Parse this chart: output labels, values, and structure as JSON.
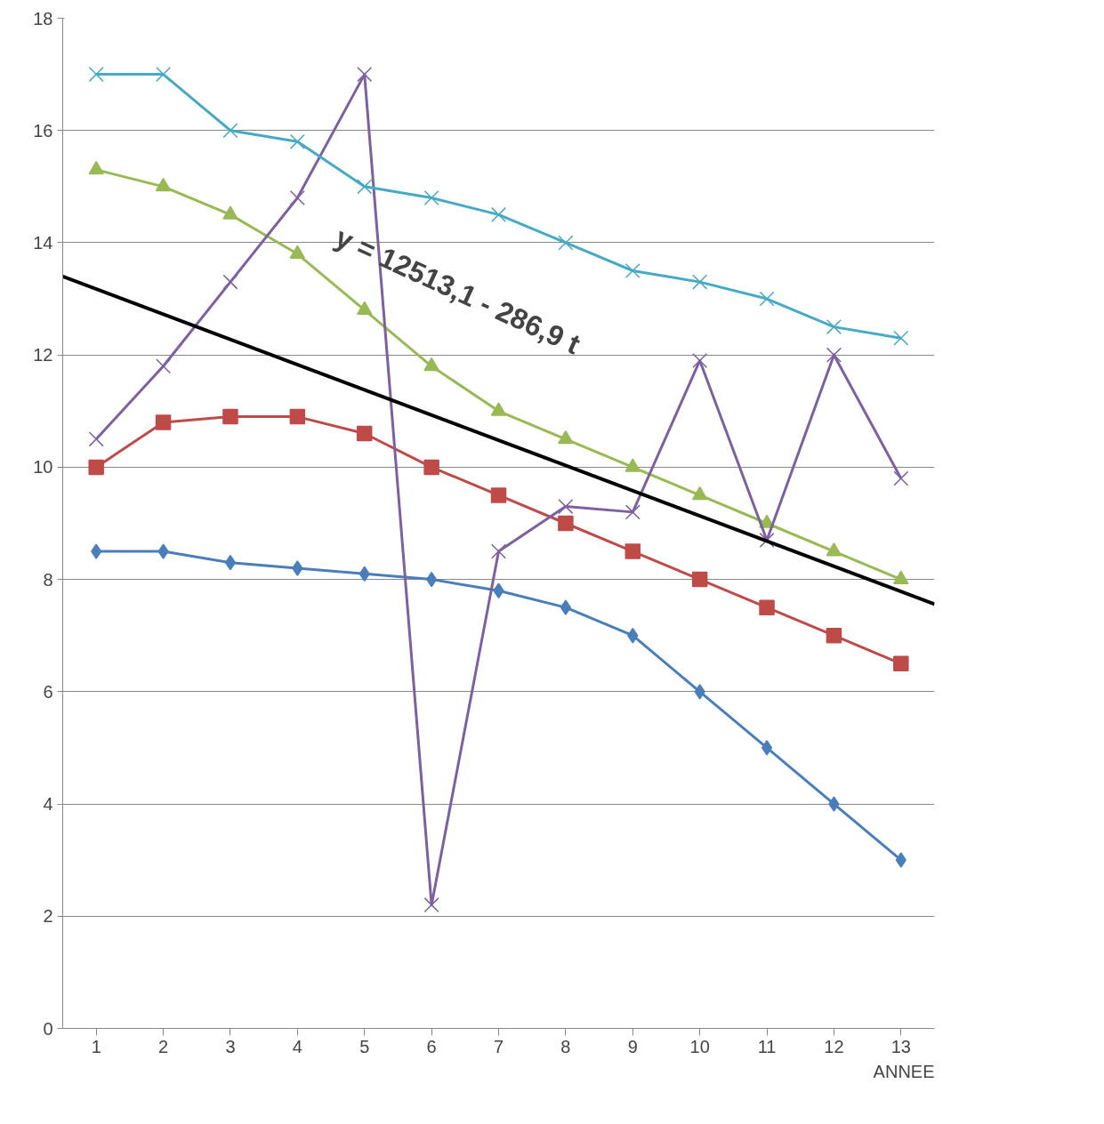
{
  "chart_data": {
    "type": "line",
    "xlabel": "ANNEE",
    "x": [
      1,
      2,
      3,
      4,
      5,
      6,
      7,
      8,
      9,
      10,
      11,
      12,
      13
    ],
    "xlim": [
      0.5,
      13.5
    ],
    "xticks": [
      1,
      2,
      3,
      4,
      5,
      6,
      7,
      8,
      9,
      10,
      11,
      12,
      13
    ],
    "ylim": [
      0,
      18
    ],
    "yticks": [
      0,
      2,
      4,
      6,
      8,
      10,
      12,
      14,
      16,
      18
    ],
    "grid": "y",
    "line_style": "solid",
    "series": [
      {
        "color": "#4a7ebb",
        "marker": "diamond",
        "values": [
          8.5,
          8.5,
          8.3,
          8.2,
          8.1,
          8.0,
          7.8,
          7.5,
          7.0,
          6.0,
          5.0,
          4.0,
          3.0
        ]
      },
      {
        "color": "#be4b48",
        "marker": "square",
        "values": [
          10,
          10.8,
          10.9,
          10.9,
          10.6,
          10,
          9.5,
          9,
          8.5,
          8,
          7.5,
          7,
          6.5
        ]
      },
      {
        "color": "#98b954",
        "marker": "triangle",
        "values": [
          15.3,
          15,
          14.5,
          13.8,
          12.8,
          11.8,
          11,
          10.5,
          10,
          9.5,
          9,
          8.5,
          8
        ]
      },
      {
        "color": "#7d60a0",
        "marker": "cross",
        "values": [
          10.5,
          11.8,
          13.3,
          14.8,
          17,
          2.2,
          8.5,
          9.3,
          9.2,
          11.9,
          8.7,
          12,
          9.8
        ]
      },
      {
        "color": "#46aac5",
        "marker": "cross",
        "values": [
          17,
          17,
          16,
          15.8,
          15,
          14.8,
          14.5,
          14,
          13.5,
          13.3,
          13,
          12.5,
          12.3
        ]
      },
      {
        "color": "#000000",
        "marker": "none",
        "x": [
          0.5,
          13.5
        ],
        "values": [
          13.4,
          7.56
        ]
      }
    ],
    "annotations": [
      "y = 12513,1 - 286,9 t"
    ]
  }
}
